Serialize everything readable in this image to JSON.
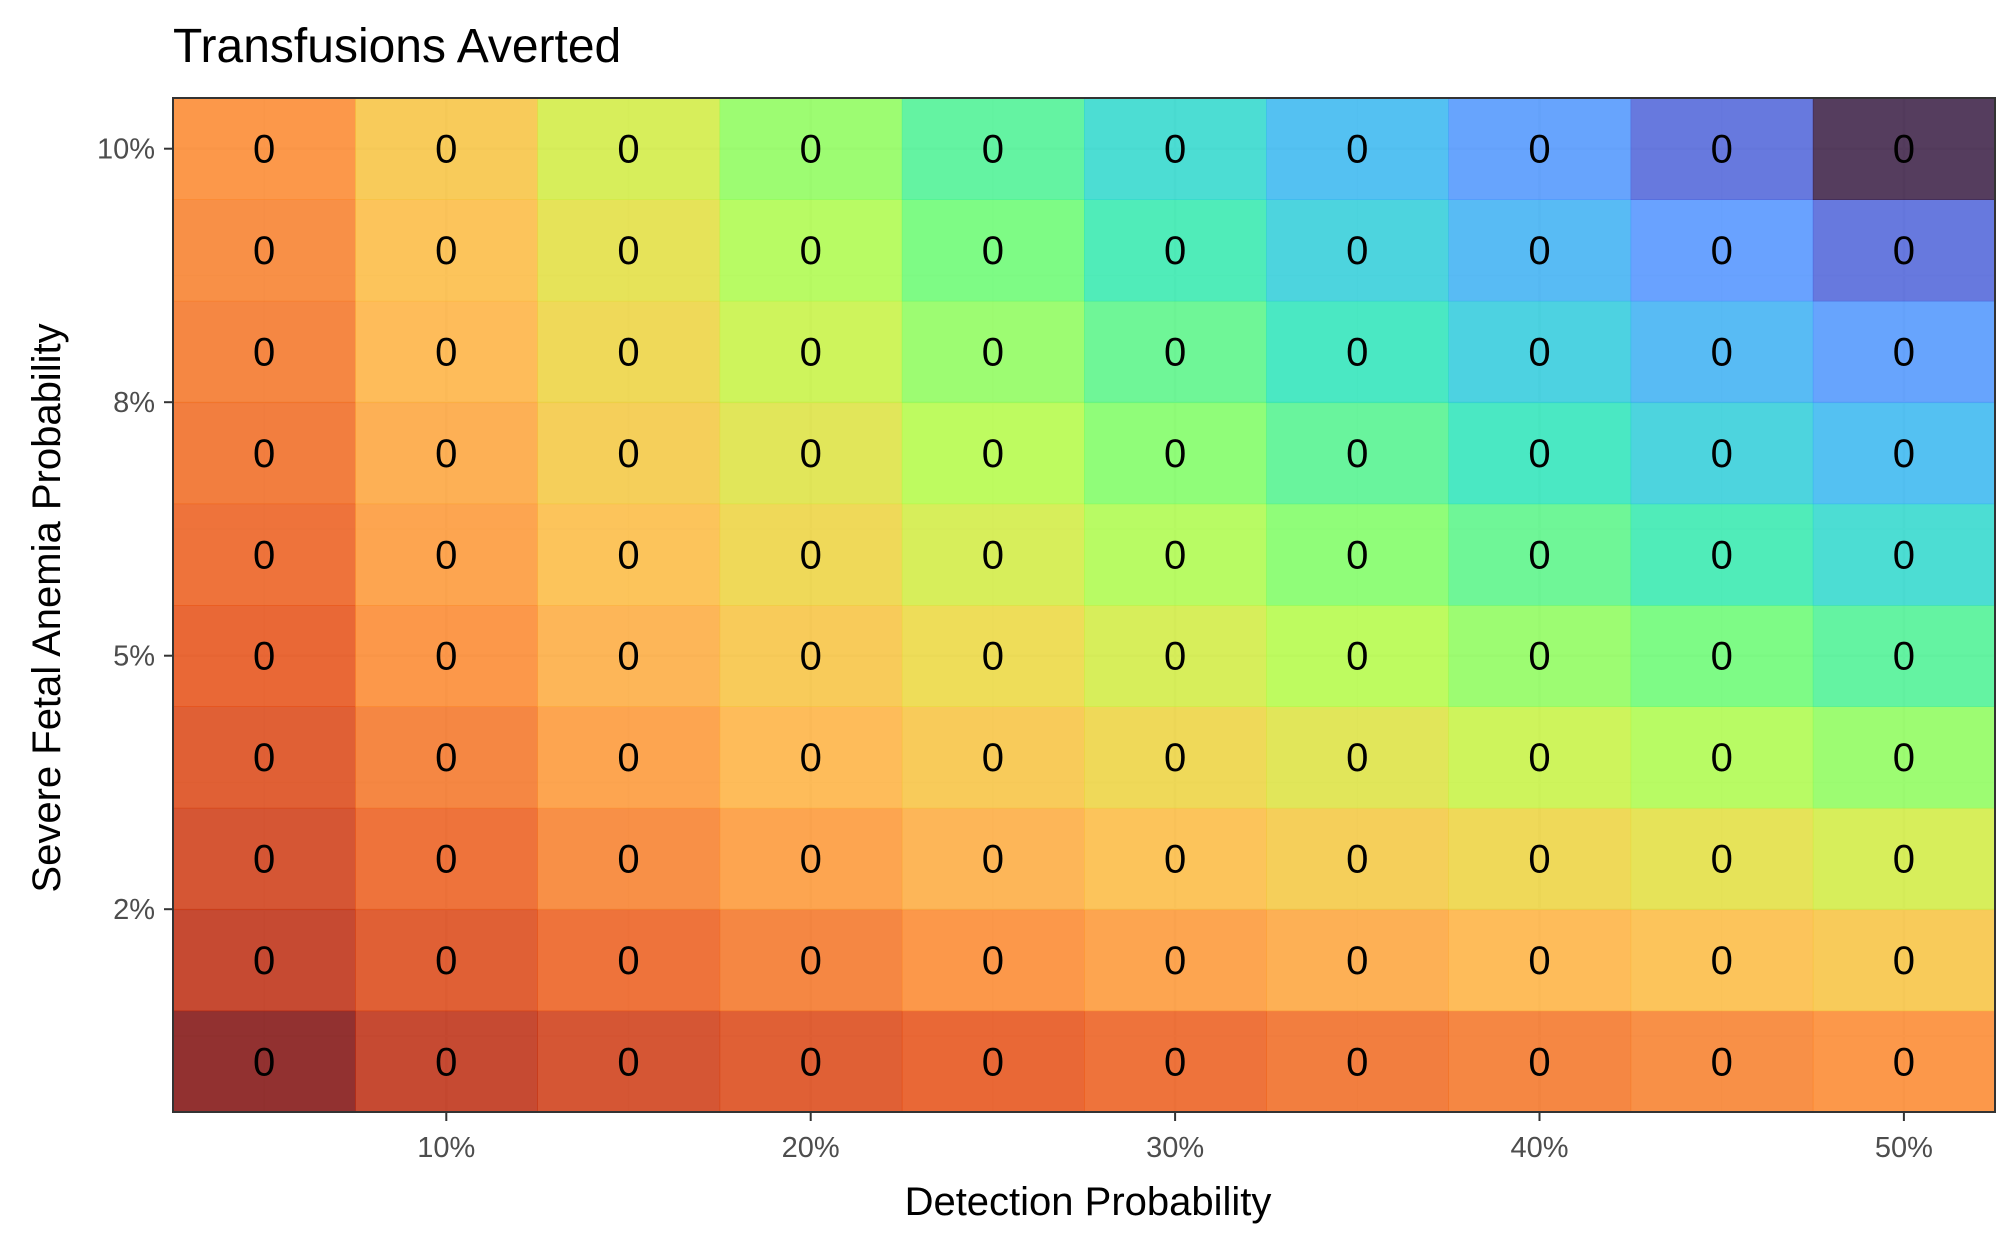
{
  "chart_data": {
    "type": "heatmap",
    "title": "Transfusions Averted",
    "xlabel": "Detection Probability",
    "ylabel": "Severe Fetal Anemia Probability",
    "x": [
      0.05,
      0.1,
      0.15,
      0.2,
      0.25,
      0.3,
      0.35,
      0.4,
      0.45,
      0.5
    ],
    "y": [
      0.01,
      0.02,
      0.03,
      0.04,
      0.05,
      0.06,
      0.07,
      0.08,
      0.09,
      0.1
    ],
    "xlim": [
      0.025,
      0.525
    ],
    "ylim": [
      0.005,
      0.105
    ],
    "x_ticks": [
      {
        "value": 0.1,
        "label": "10%"
      },
      {
        "value": 0.2,
        "label": "20%"
      },
      {
        "value": 0.3,
        "label": "30%"
      },
      {
        "value": 0.4,
        "label": "40%"
      },
      {
        "value": 0.5,
        "label": "50%"
      }
    ],
    "y_ticks": [
      {
        "value": 0.1,
        "label": "10%"
      },
      {
        "value": 0.075,
        "label": "8%"
      },
      {
        "value": 0.05,
        "label": "5%"
      },
      {
        "value": 0.025,
        "label": "2%"
      }
    ],
    "cell_value": 0,
    "cell_label": "0",
    "grid": true,
    "legend": "none",
    "colormap": "turbo-reversed",
    "colors": {
      "background": "#ffffff",
      "grid_major": "#ebebeb",
      "grid_minor": "#f5f5f5",
      "panel_border": "#333333"
    }
  }
}
